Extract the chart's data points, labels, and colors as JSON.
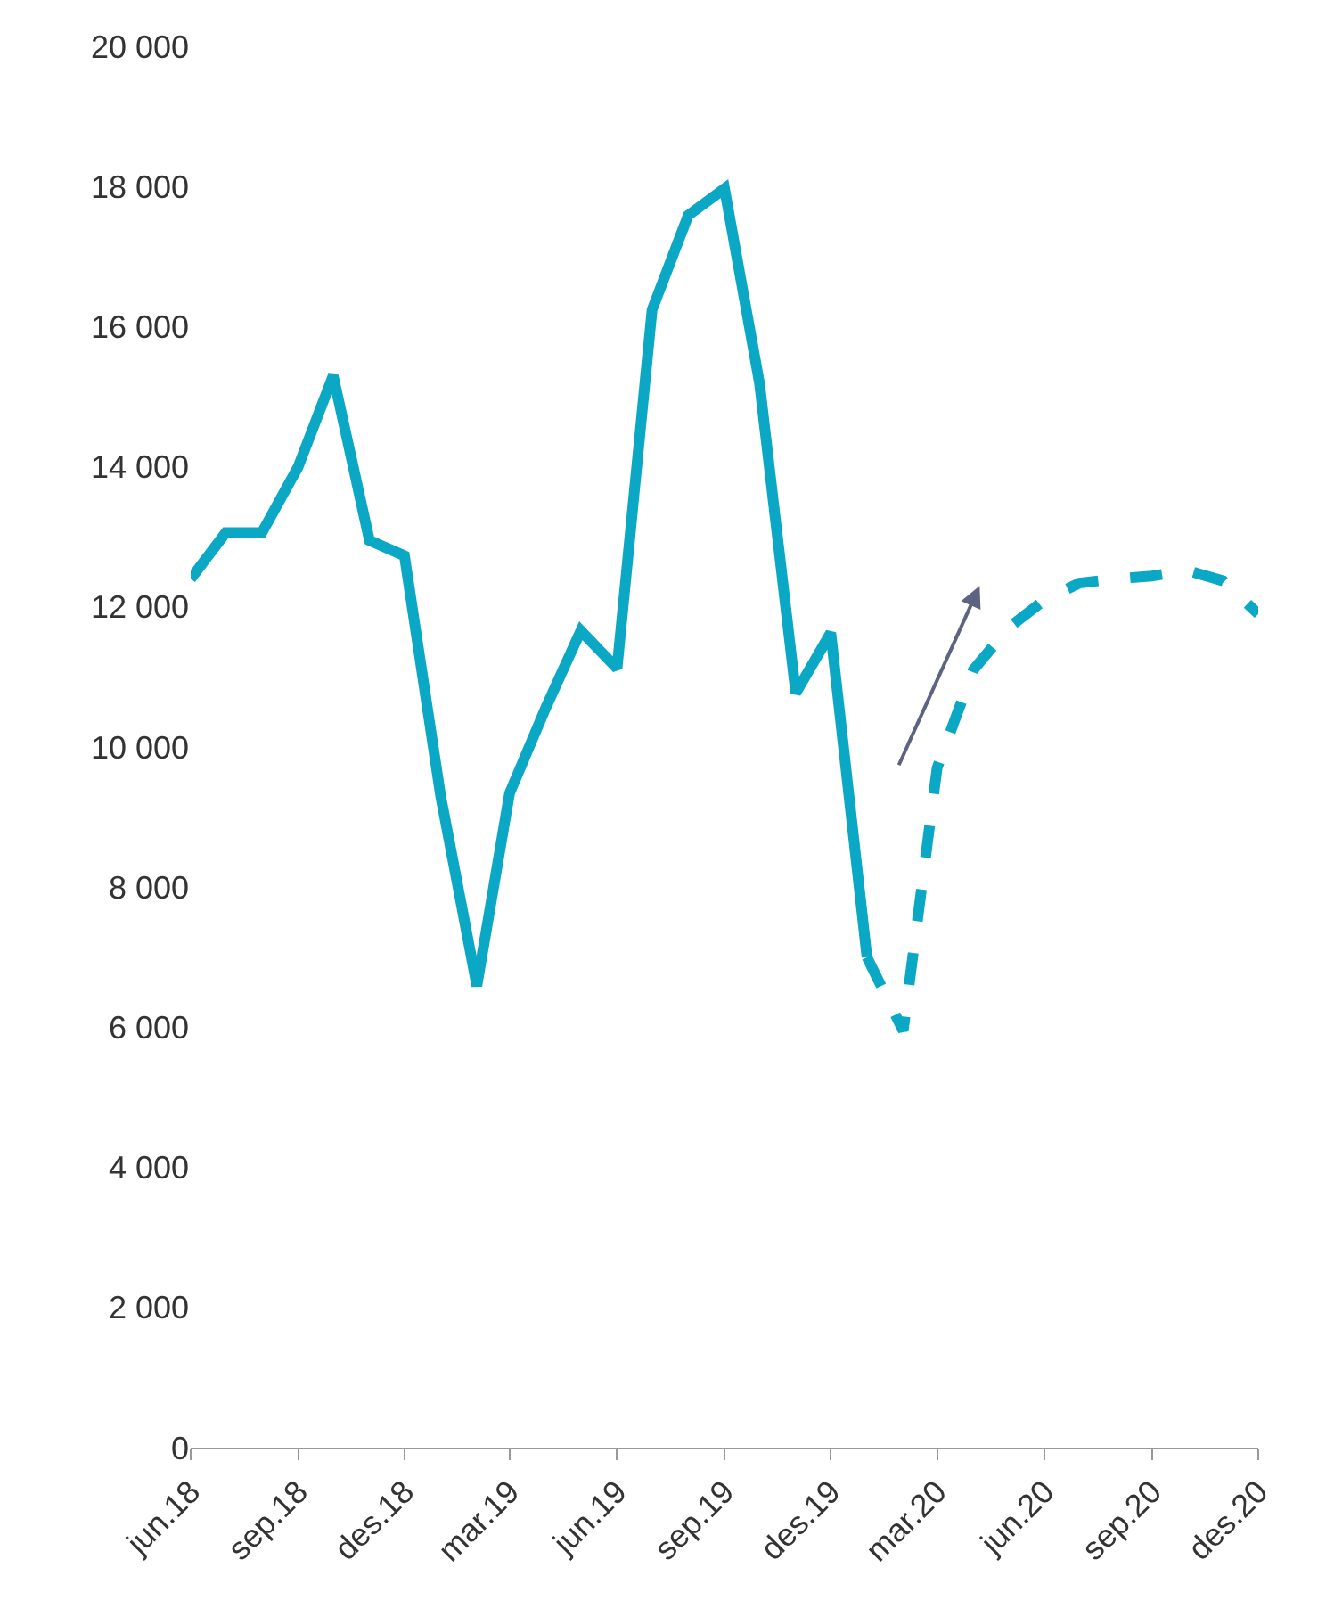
{
  "chart_data": {
    "type": "line",
    "series": [
      {
        "color": "#0ba8c6",
        "line_style": "solid",
        "x": [
          "2018-06",
          "2018-07",
          "2018-08",
          "2018-09",
          "2018-10",
          "2018-11",
          "2018-12",
          "2019-01",
          "2019-02",
          "2019-03",
          "2019-04",
          "2019-05",
          "2019-06",
          "2019-07",
          "2019-08",
          "2019-09",
          "2019-10",
          "2019-11",
          "2019-12",
          "2020-01"
        ],
        "values": [
          12400,
          13060,
          13060,
          14000,
          15300,
          12950,
          12730,
          9300,
          6590,
          9340,
          10560,
          11660,
          11120,
          16240,
          17590,
          17970,
          15190,
          10770,
          11630,
          7000
        ]
      },
      {
        "color": "#0ba8c6",
        "line_style": "dashed",
        "x": [
          "2020-01",
          "2020-02",
          "2020-03",
          "2020-04",
          "2020-05",
          "2020-06",
          "2020-07",
          "2020-08",
          "2020-09",
          "2020-10",
          "2020-11",
          "2020-12"
        ],
        "values": [
          7000,
          5950,
          9700,
          11100,
          11700,
          12100,
          12340,
          12400,
          12440,
          12520,
          12370,
          11900
        ]
      }
    ],
    "xlim": [
      "2018-06",
      "2020-12"
    ],
    "xticks": [
      {
        "value": "2018-06",
        "label": "jun.18"
      },
      {
        "value": "2018-09",
        "label": "sep.18"
      },
      {
        "value": "2018-12",
        "label": "des.18"
      },
      {
        "value": "2019-03",
        "label": "mar.19"
      },
      {
        "value": "2019-06",
        "label": "jun.19"
      },
      {
        "value": "2019-09",
        "label": "sep.19"
      },
      {
        "value": "2019-12",
        "label": "des.19"
      },
      {
        "value": "2020-03",
        "label": "mar.20"
      },
      {
        "value": "2020-06",
        "label": "jun.20"
      },
      {
        "value": "2020-09",
        "label": "sep.20"
      },
      {
        "value": "2020-12",
        "label": "des.20"
      }
    ],
    "ylim": [
      0,
      20000
    ],
    "yticks": [
      0,
      {
        "value": 2000,
        "label": "2 000"
      },
      {
        "value": 4000,
        "label": "4 000"
      },
      {
        "value": 6000,
        "label": "6 000"
      },
      {
        "value": 8000,
        "label": "8 000"
      },
      {
        "value": 10000,
        "label": "10 000"
      },
      {
        "value": 12000,
        "label": "12 000"
      },
      {
        "value": 14000,
        "label": "14 000"
      },
      {
        "value": 16000,
        "label": "16 000"
      },
      {
        "value": 18000,
        "label": "18 000"
      },
      {
        "value": 20000,
        "label": "20 000"
      }
    ],
    "marker": "none"
  }
}
